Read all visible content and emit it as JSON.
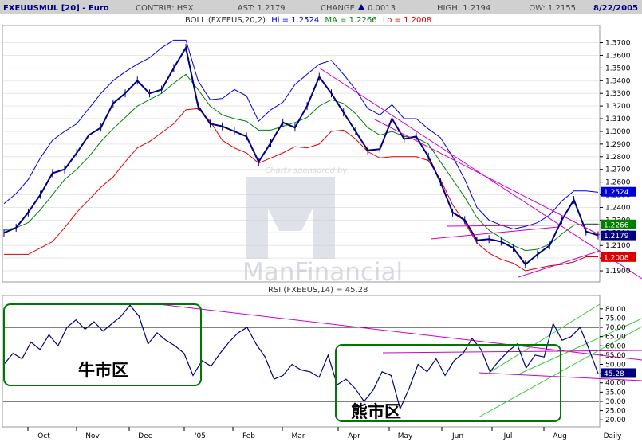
{
  "header": {
    "symbol": "FXEUUSMUL [20] - Euro",
    "contrib": "CONTRIB: HSX",
    "last": "LAST: 1.2179",
    "change_label": "CHANGE:",
    "change_value": "0.0013",
    "high": "HIGH: 1.2194",
    "low": "LOW: 1.2155",
    "date": "8/22/2005"
  },
  "boll_legend": {
    "prefix": "BOLL (FXEEUS,20,2)",
    "hi": "Hi = 1.2524",
    "ma": "MA = 1.2266",
    "lo": "Lo = 1.2008"
  },
  "rsi_legend": "RSI (FXEEUS,14) = 45.28",
  "watermark": {
    "sponsor": "Charts sponsored by:",
    "brand": "ManFinancial"
  },
  "annotations": {
    "bull_zone": "牛市区",
    "bear_zone": "熊市区"
  },
  "badges": {
    "boll_hi": "1.2524",
    "boll_ma": "1.2266",
    "last": "1.2179",
    "boll_lo": "1.2008",
    "rsi": "45.28"
  },
  "colors": {
    "price": "#000080",
    "upper_band": "#0000dd",
    "middle_band": "#008000",
    "lower_band": "#dd0000",
    "trendline": "#cc00cc",
    "rsi_channel": "#33cc33",
    "zone_box": "#007700",
    "badge_hi": "#0000dd",
    "badge_ma": "#008000",
    "badge_last": "#000080",
    "badge_lo": "#dd0000",
    "badge_rsi": "#000080"
  },
  "chart_data": [
    {
      "type": "line",
      "title": "FXEUUSMUL [20] - Euro",
      "x_ticks": [
        "Oct",
        "Nov",
        "Dec",
        "'05",
        "Feb",
        "Mar",
        "Apr",
        "May",
        "Jun",
        "Jul",
        "Aug",
        "Daily"
      ],
      "y_ticks": [
        "1.3700",
        "1.3600",
        "1.3500",
        "1.3400",
        "1.3300",
        "1.3200",
        "1.3100",
        "1.3000",
        "1.2900",
        "1.2800",
        "1.2700",
        "1.2600",
        "1.2500",
        "1.2400",
        "1.2300",
        "1.2200",
        "1.2100",
        "1.2000",
        "1.1900"
      ],
      "ylim": [
        1.185,
        1.376
      ],
      "series": [
        {
          "name": "Close",
          "values": [
            1.22,
            1.224,
            1.236,
            1.25,
            1.267,
            1.27,
            1.283,
            1.297,
            1.303,
            1.322,
            1.33,
            1.34,
            1.33,
            1.333,
            1.35,
            1.366,
            1.32,
            1.306,
            1.304,
            1.3,
            1.296,
            1.276,
            1.291,
            1.307,
            1.303,
            1.32,
            1.343,
            1.33,
            1.315,
            1.3,
            1.285,
            1.286,
            1.31,
            1.294,
            1.296,
            1.28,
            1.26,
            1.236,
            1.23,
            1.214,
            1.215,
            1.213,
            1.208,
            1.195,
            1.203,
            1.21,
            1.23,
            1.246,
            1.221,
            1.218
          ]
        },
        {
          "name": "Hi",
          "values": [
            1.243,
            1.251,
            1.262,
            1.279,
            1.293,
            1.3,
            1.306,
            1.318,
            1.33,
            1.34,
            1.347,
            1.353,
            1.358,
            1.366,
            1.372,
            1.372,
            1.34,
            1.325,
            1.326,
            1.333,
            1.328,
            1.308,
            1.317,
            1.323,
            1.337,
            1.345,
            1.353,
            1.356,
            1.345,
            1.333,
            1.318,
            1.313,
            1.321,
            1.31,
            1.31,
            1.302,
            1.295,
            1.28,
            1.262,
            1.24,
            1.23,
            1.226,
            1.223,
            1.225,
            1.228,
            1.234,
            1.245,
            1.253,
            1.253,
            1.252
          ]
        },
        {
          "name": "MA",
          "values": [
            1.222,
            1.224,
            1.228,
            1.238,
            1.25,
            1.262,
            1.27,
            1.28,
            1.292,
            1.302,
            1.311,
            1.32,
            1.325,
            1.33,
            1.338,
            1.345,
            1.333,
            1.32,
            1.313,
            1.31,
            1.308,
            1.301,
            1.301,
            1.304,
            1.307,
            1.311,
            1.32,
            1.325,
            1.322,
            1.314,
            1.303,
            1.297,
            1.3,
            1.296,
            1.295,
            1.29,
            1.276,
            1.262,
            1.248,
            1.232,
            1.222,
            1.216,
            1.21,
            1.206,
            1.207,
            1.211,
            1.219,
            1.226,
            1.227,
            1.227
          ]
        },
        {
          "name": "Lo",
          "values": [
            1.203,
            1.203,
            1.203,
            1.208,
            1.213,
            1.224,
            1.236,
            1.246,
            1.256,
            1.264,
            1.276,
            1.287,
            1.292,
            1.299,
            1.306,
            1.317,
            1.318,
            1.308,
            1.293,
            1.287,
            1.283,
            1.275,
            1.279,
            1.283,
            1.288,
            1.287,
            1.29,
            1.3,
            1.301,
            1.294,
            1.284,
            1.279,
            1.28,
            1.28,
            1.28,
            1.277,
            1.262,
            1.242,
            1.228,
            1.212,
            1.204,
            1.199,
            1.196,
            1.19,
            1.192,
            1.194,
            1.195,
            1.197,
            1.201,
            1.201
          ]
        }
      ]
    },
    {
      "type": "line",
      "title": "RSI (FXEEUS,14) = 45.28",
      "y_ticks": [
        "80.00",
        "75.00",
        "70.00",
        "65.00",
        "60.00",
        "55.00",
        "50.00",
        "45.00",
        "40.00",
        "35.00",
        "30.00",
        "25.00",
        "20.00"
      ],
      "ylim": [
        17.5,
        82.5
      ],
      "reference_lines": [
        70,
        30
      ],
      "series": [
        {
          "name": "RSI",
          "values": [
            50,
            56,
            53,
            62,
            58,
            66,
            60,
            70,
            74,
            69,
            73,
            68,
            72,
            76,
            82,
            76,
            61,
            67,
            63,
            60,
            56,
            44,
            52,
            49,
            56,
            62,
            67,
            70,
            61,
            54,
            42,
            44,
            50,
            47,
            46,
            43,
            55,
            39,
            42,
            37,
            30,
            36,
            46,
            44,
            26,
            37,
            50,
            46,
            53,
            44,
            52,
            56,
            64,
            58,
            46,
            52,
            57,
            61,
            48,
            55,
            54,
            72,
            63,
            65,
            70,
            58,
            45
          ]
        }
      ]
    }
  ]
}
